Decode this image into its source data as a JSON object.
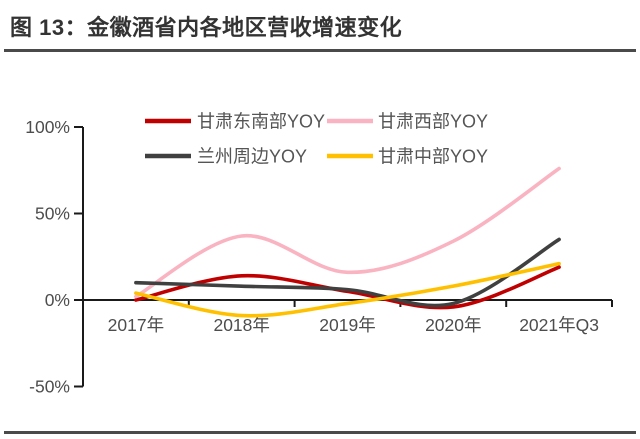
{
  "page": {
    "title": "图 13：金徽酒省内各地区营收增速变化"
  },
  "chart_data": {
    "type": "line",
    "title": "金徽酒省内各地区营收增速变化",
    "smooth": true,
    "grid": false,
    "legend_position": "top",
    "categories": [
      "2017年",
      "2018年",
      "2019年",
      "2020年",
      "2021年Q3"
    ],
    "series": [
      {
        "name": "甘肃东南部YOY",
        "color": "#c00000",
        "values": [
          0,
          14,
          5,
          -4,
          19
        ]
      },
      {
        "name": "甘肃西部YOY",
        "color": "#f9b3c1",
        "values": [
          2,
          37,
          16,
          34,
          76
        ]
      },
      {
        "name": "兰州周边YOY",
        "color": "#404040",
        "values": [
          10,
          8,
          6,
          -2,
          35
        ]
      },
      {
        "name": "甘肃中部YOY",
        "color": "#ffc000",
        "values": [
          4,
          -9,
          -2,
          8,
          21
        ]
      }
    ],
    "xlabel": "",
    "ylabel": "",
    "ylim": [
      -50,
      100
    ],
    "y_ticks": [
      {
        "value": 100,
        "label": "100%"
      },
      {
        "value": 50,
        "label": "50%"
      },
      {
        "value": 0,
        "label": "0%"
      },
      {
        "value": -50,
        "label": "-50%"
      }
    ],
    "axis_color": "#1a1a1a",
    "text_color": "#4d4d4d"
  }
}
